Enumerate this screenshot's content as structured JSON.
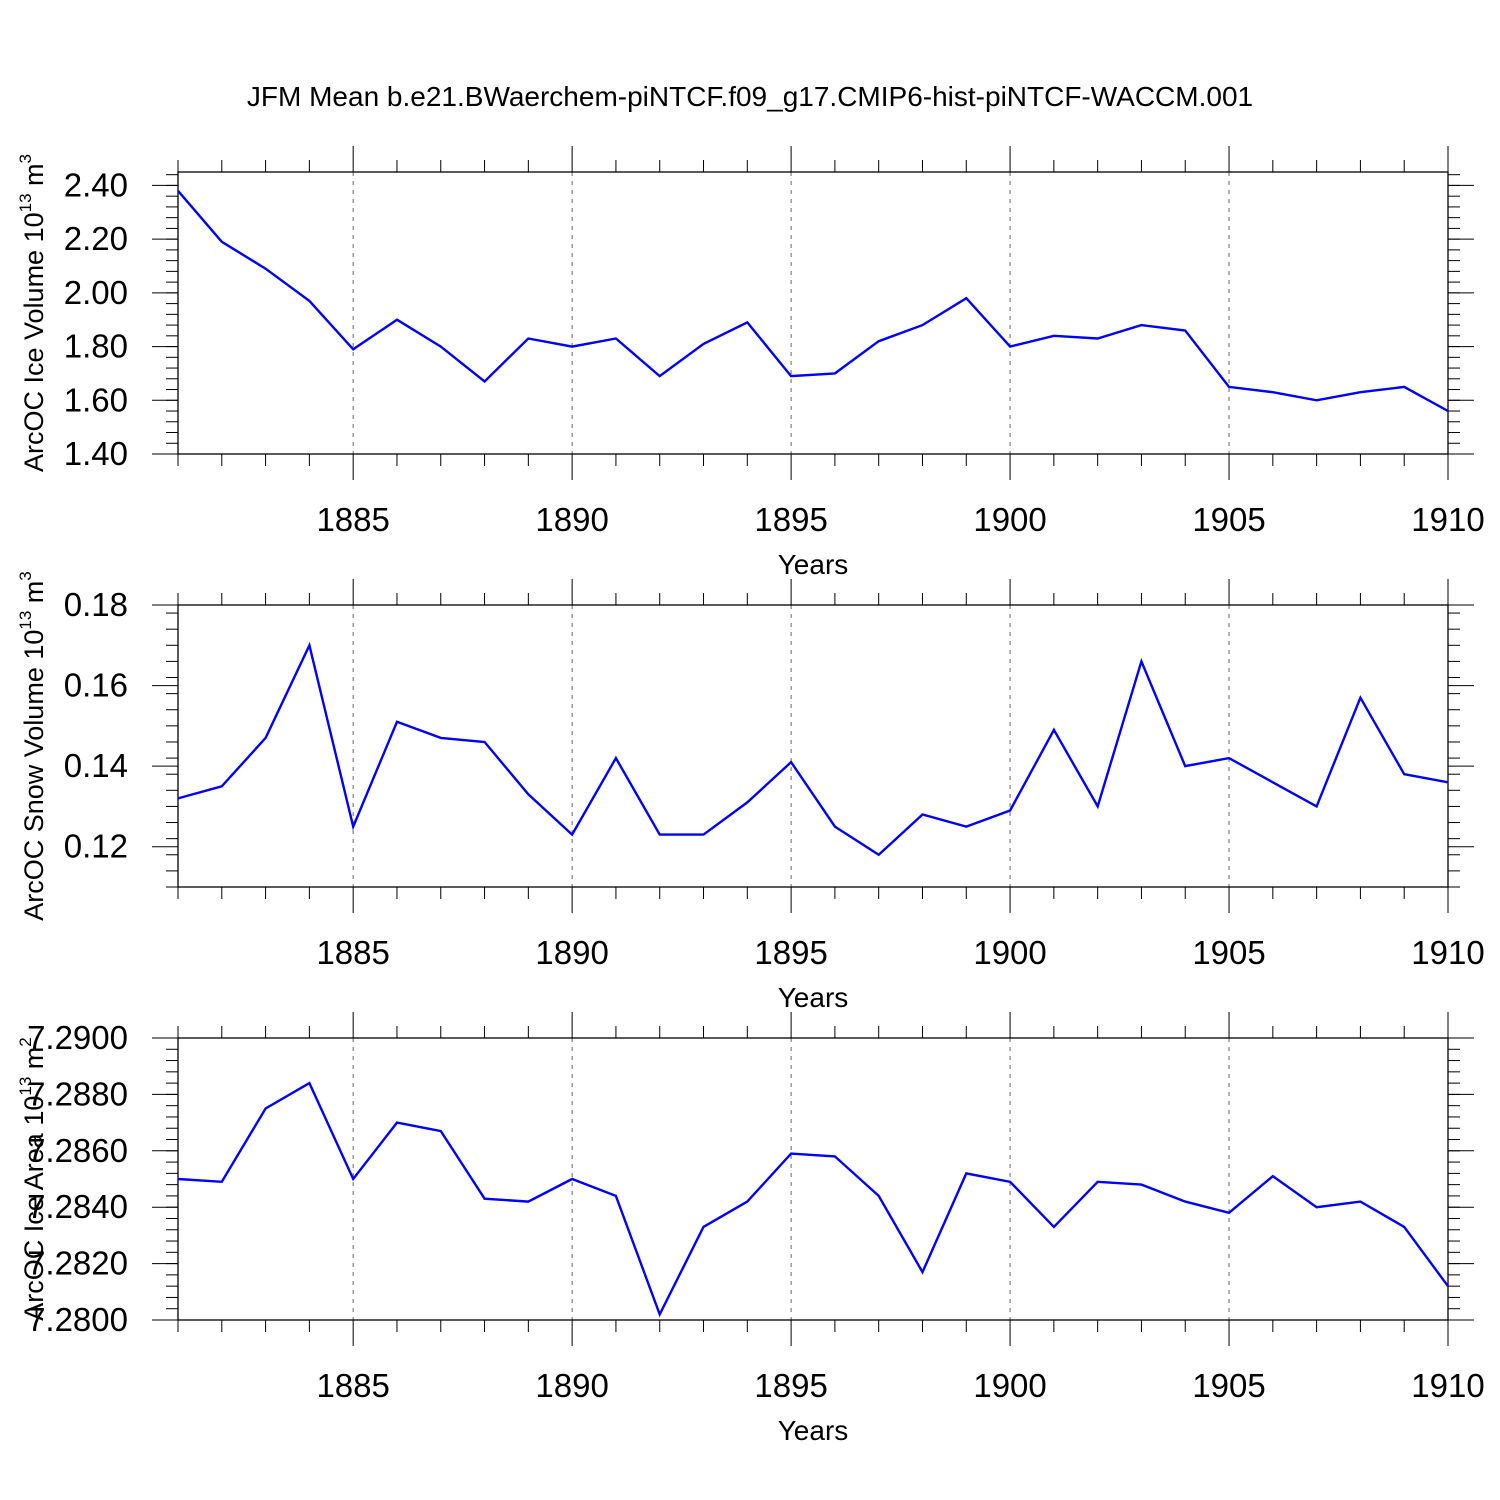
{
  "title": "JFM Mean b.e21.BWaerchem-piNTCF.f09_g17.CMIP6-hist-piNTCF-WACCM.001",
  "colors": {
    "line": "#0000ff",
    "axis": "#000000",
    "grid": "#666666"
  },
  "chart_data": [
    {
      "type": "line",
      "ylabel": "ArcOC Ice Volume 10",
      "ylabel_exp": "13",
      "ylabel_unit": " m",
      "ylabel_unit_exp": "3",
      "xlabel": "Years",
      "xlim": [
        1881,
        1910
      ],
      "xticks": [
        1885,
        1890,
        1895,
        1900,
        1905,
        1910
      ],
      "xtick_labels": [
        "1885",
        "1890",
        "1895",
        "1900",
        "1905",
        "1910"
      ],
      "ylim": [
        1.4,
        2.45
      ],
      "yticks": [
        1.4,
        1.6,
        1.8,
        2.0,
        2.2,
        2.4
      ],
      "ytick_labels": [
        "1.40",
        "1.60",
        "1.80",
        "2.00",
        "2.20",
        "2.40"
      ],
      "yminor_step": 0.04,
      "x": [
        1881,
        1882,
        1883,
        1884,
        1885,
        1886,
        1887,
        1888,
        1889,
        1890,
        1891,
        1892,
        1893,
        1894,
        1895,
        1896,
        1897,
        1898,
        1899,
        1900,
        1901,
        1902,
        1903,
        1904,
        1905,
        1906,
        1907,
        1908,
        1909,
        1910
      ],
      "values": [
        2.38,
        2.19,
        2.09,
        1.97,
        1.79,
        1.9,
        1.8,
        1.67,
        1.83,
        1.8,
        1.83,
        1.69,
        1.81,
        1.89,
        1.69,
        1.7,
        1.82,
        1.88,
        1.98,
        1.8,
        1.84,
        1.83,
        1.88,
        1.86,
        1.65,
        1.63,
        1.6,
        1.63,
        1.65,
        1.56
      ]
    },
    {
      "type": "line",
      "ylabel": "ArcOC Snow Volume 10",
      "ylabel_exp": "13",
      "ylabel_unit": " m",
      "ylabel_unit_exp": "3",
      "xlabel": "Years",
      "xlim": [
        1881,
        1910
      ],
      "xticks": [
        1885,
        1890,
        1895,
        1900,
        1905,
        1910
      ],
      "xtick_labels": [
        "1885",
        "1890",
        "1895",
        "1900",
        "1905",
        "1910"
      ],
      "ylim": [
        0.11,
        0.18
      ],
      "yticks": [
        0.12,
        0.14,
        0.16,
        0.18
      ],
      "ytick_labels": [
        "0.12",
        "0.14",
        "0.16",
        "0.18"
      ],
      "yminor_step": 0.004,
      "x": [
        1881,
        1882,
        1883,
        1884,
        1885,
        1886,
        1887,
        1888,
        1889,
        1890,
        1891,
        1892,
        1893,
        1894,
        1895,
        1896,
        1897,
        1898,
        1899,
        1900,
        1901,
        1902,
        1903,
        1904,
        1905,
        1906,
        1907,
        1908,
        1909,
        1910
      ],
      "values": [
        0.132,
        0.135,
        0.147,
        0.17,
        0.125,
        0.151,
        0.147,
        0.146,
        0.133,
        0.123,
        0.142,
        0.123,
        0.123,
        0.131,
        0.141,
        0.125,
        0.118,
        0.128,
        0.125,
        0.129,
        0.149,
        0.13,
        0.166,
        0.14,
        0.142,
        0.136,
        0.13,
        0.157,
        0.138,
        0.136
      ]
    },
    {
      "type": "line",
      "ylabel": "ArcOC Ice Area 10",
      "ylabel_exp": "13",
      "ylabel_unit": " m",
      "ylabel_unit_exp": "2",
      "xlabel": "Years",
      "xlim": [
        1881,
        1910
      ],
      "xticks": [
        1885,
        1890,
        1895,
        1900,
        1905,
        1910
      ],
      "xtick_labels": [
        "1885",
        "1890",
        "1895",
        "1900",
        "1905",
        "1910"
      ],
      "ylim": [
        7.28,
        7.29
      ],
      "yticks": [
        7.28,
        7.282,
        7.284,
        7.286,
        7.288,
        7.29
      ],
      "ytick_labels": [
        "7.2800",
        "7.2820",
        "7.2840",
        "7.2860",
        "7.2880",
        "7.2900"
      ],
      "yminor_step": 0.0004,
      "x": [
        1881,
        1882,
        1883,
        1884,
        1885,
        1886,
        1887,
        1888,
        1889,
        1890,
        1891,
        1892,
        1893,
        1894,
        1895,
        1896,
        1897,
        1898,
        1899,
        1900,
        1901,
        1902,
        1903,
        1904,
        1905,
        1906,
        1907,
        1908,
        1909,
        1910
      ],
      "values": [
        7.285,
        7.2849,
        7.2875,
        7.2884,
        7.285,
        7.287,
        7.2867,
        7.2843,
        7.2842,
        7.285,
        7.2844,
        7.2802,
        7.2833,
        7.2842,
        7.2859,
        7.2858,
        7.2844,
        7.2817,
        7.2852,
        7.2849,
        7.2833,
        7.2849,
        7.2848,
        7.2842,
        7.2838,
        7.2851,
        7.284,
        7.2842,
        7.2833,
        7.2812
      ]
    }
  ]
}
